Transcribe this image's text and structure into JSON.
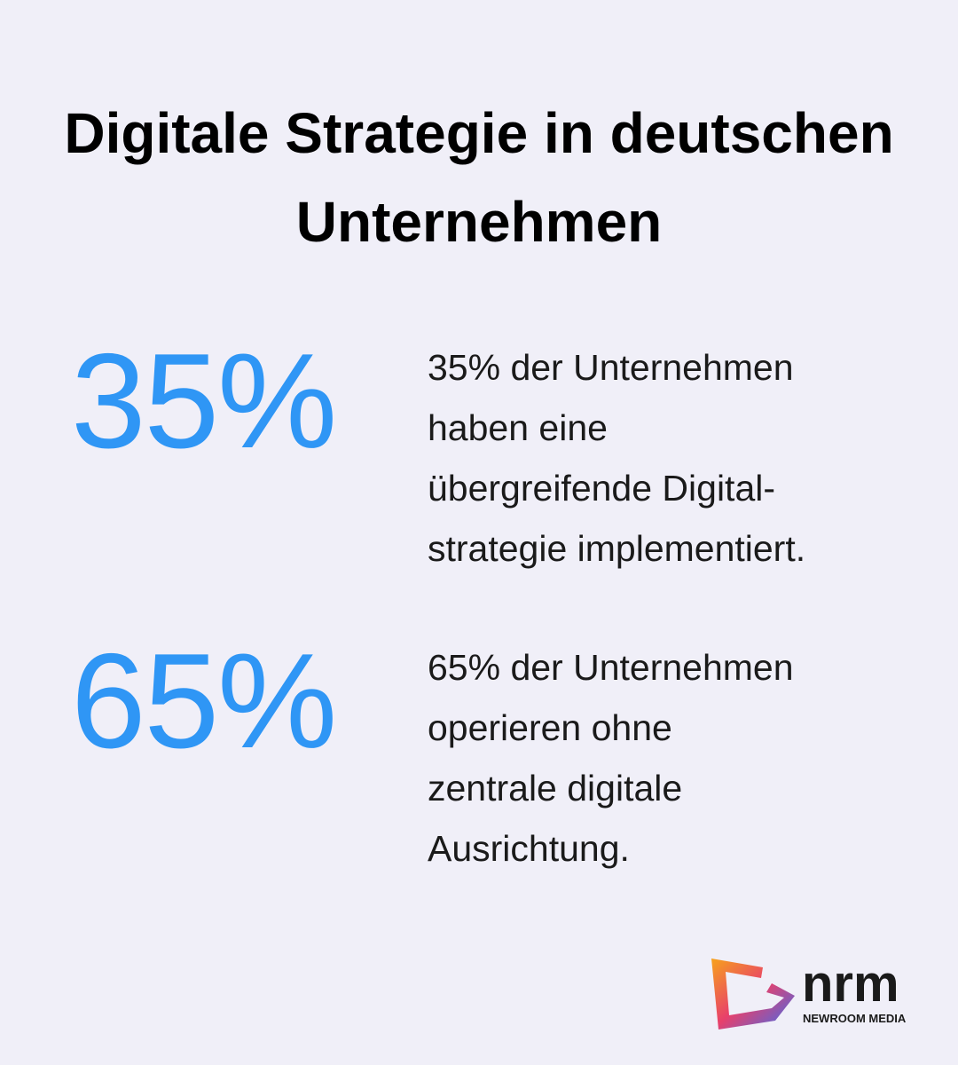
{
  "header": {
    "title": "Digitale Strategie in deutschen Unternehmen"
  },
  "stats": [
    {
      "number": "35%",
      "description": [
        "35% der Unternehmen",
        "haben eine",
        "übergreifende Digital-",
        "strategie implementiert."
      ]
    },
    {
      "number": "65%",
      "description": [
        "65% der Unternehmen",
        "operieren ohne",
        "zentrale digitale",
        "Ausrichtung."
      ]
    }
  ],
  "logo": {
    "name": "nrm",
    "subtitle": "NEWROOM MEDIA"
  }
}
